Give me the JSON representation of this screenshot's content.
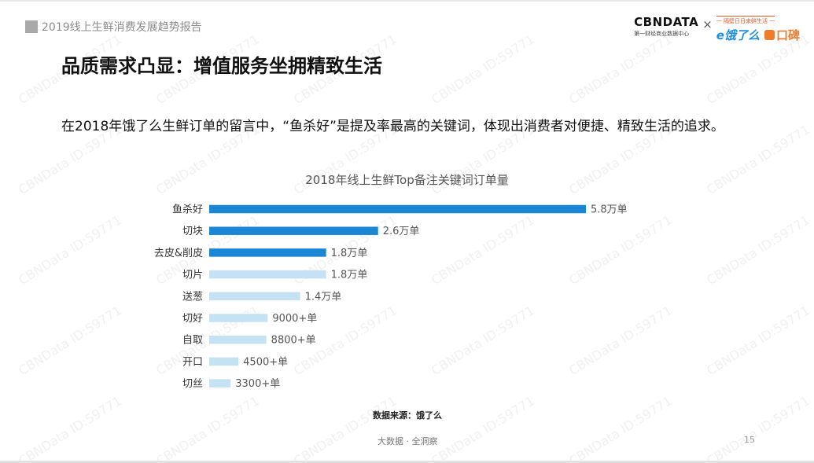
{
  "header": {
    "report_title": "2019线上生鲜消费发展趋势报告",
    "cbn_name": "CBNDATA",
    "cbn_sub": "第一财经商业数据中心",
    "times": "×",
    "slogan": "一 隔壁日日来鲜生活 一",
    "ele_logo": "e饿了么",
    "koubei_logo": "口碑"
  },
  "page": {
    "title": "品质需求凸显：增值服务坐拥精致生活",
    "subtitle": "在2018年饿了么生鲜订单的留言中，“鱼杀好”是提及率最高的关键词，体现出消费者对便捷、精致生活的追求。",
    "source": "数据来源：饿了么",
    "footer": "大数据 · 全洞察",
    "page_number": "15",
    "watermark": "CBNData ID:59771"
  },
  "chart_data": {
    "type": "bar",
    "orientation": "horizontal",
    "title": "2018年线上生鲜Top备注关键词订单量",
    "xlabel": "",
    "ylabel": "",
    "categories": [
      "鱼杀好",
      "切块",
      "去皮&削皮",
      "切片",
      "送葱",
      "切好",
      "自取",
      "开口",
      "切丝"
    ],
    "values": [
      58000,
      26000,
      18000,
      18000,
      14000,
      9000,
      8800,
      4500,
      3300
    ],
    "labels": [
      "5.8万单",
      "2.6万单",
      "1.8万单",
      "1.8万单",
      "1.4万单",
      "9000+单",
      "8800+单",
      "4500+单",
      "3300+单"
    ],
    "bar_colors": [
      "#1a86d6",
      "#1a86d6",
      "#1a86d6",
      "#c5e2f5",
      "#c5e2f5",
      "#c5e2f5",
      "#c5e2f5",
      "#c5e2f5",
      "#c5e2f5"
    ],
    "xlim": [
      0,
      58000
    ],
    "grid": false,
    "legend": "none"
  }
}
